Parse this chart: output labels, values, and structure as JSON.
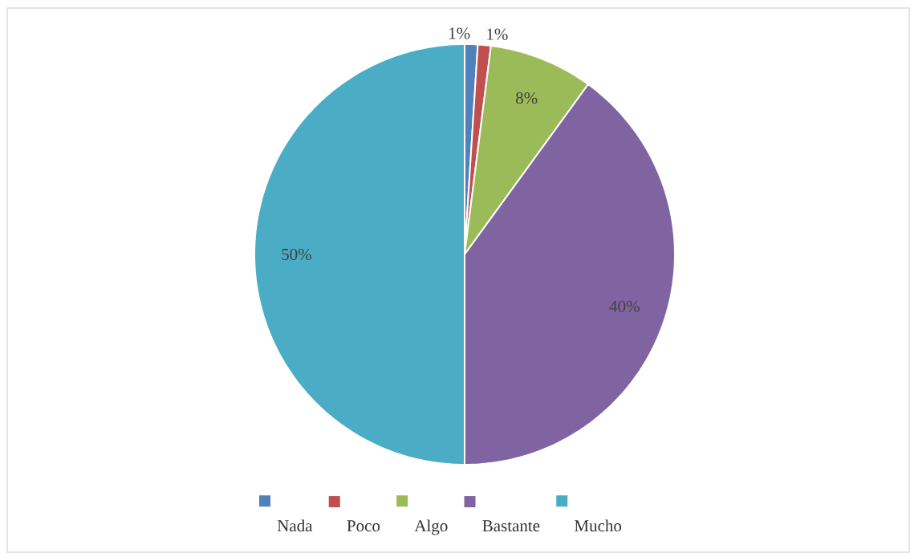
{
  "chart_data": {
    "type": "pie",
    "categories": [
      "Nada",
      "Poco",
      "Algo",
      "Bastante",
      "Mucho"
    ],
    "values": [
      1,
      1,
      8,
      40,
      50
    ],
    "colors": [
      "#4f81bd",
      "#c0504d",
      "#9bbb59",
      "#8064a2",
      "#4bacc6"
    ],
    "value_labels": [
      "1%",
      "1%",
      "8%",
      "40%",
      "50%"
    ],
    "legend": "bottom"
  }
}
